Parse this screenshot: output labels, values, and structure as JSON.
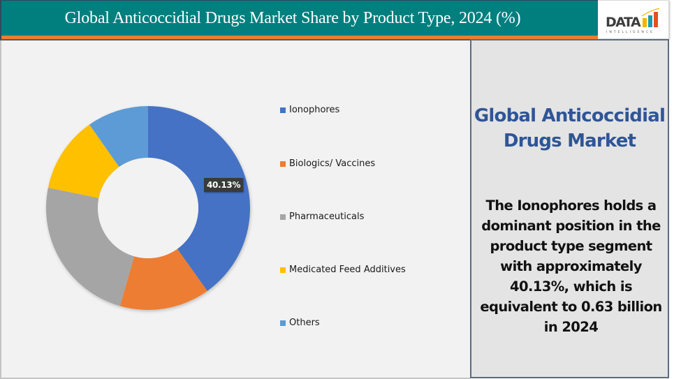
{
  "header": {
    "title": "Global Anticoccidial Drugs Market Share by Product Type, 2024 (%)",
    "logo": {
      "word": "DATA",
      "subword": "INTELLIGENCE",
      "bar_colors": [
        "#f5b400",
        "#1a9bb0",
        "#e8501e"
      ]
    },
    "colors": {
      "bar": "#007f7f",
      "accent": "#ed7d31"
    }
  },
  "chart_data": {
    "type": "pie",
    "variant": "donut",
    "title": "Global Anticoccidial Drugs Market Share by Product Type, 2024 (%)",
    "categories": [
      "Ionophores",
      "Biologics/ Vaccines",
      "Pharmaceuticals",
      "Medicated Feed Additives",
      "Others"
    ],
    "values": [
      40.13,
      14.3,
      23.75,
      12.07,
      9.75
    ],
    "colors": [
      "#4472c4",
      "#ed7d31",
      "#a5a5a5",
      "#ffc000",
      "#5b9bd5"
    ],
    "data_labels": [
      {
        "category": "Ionophores",
        "text": "40.13%"
      }
    ],
    "legend_position": "right",
    "start_angle_deg": 0,
    "direction": "clockwise"
  },
  "legend": {
    "items": [
      {
        "label": "Ionophores",
        "color": "#4472c4"
      },
      {
        "label": "Biologics/ Vaccines",
        "color": "#ed7d31"
      },
      {
        "label": "Pharmaceuticals",
        "color": "#a5a5a5"
      },
      {
        "label": "Medicated Feed Additives",
        "color": "#ffc000"
      },
      {
        "label": "Others",
        "color": "#5b9bd5"
      }
    ]
  },
  "data_label": {
    "text": "40.13%"
  },
  "side_panel": {
    "title": "Global Anticoccidial Drugs Market",
    "body": "The Ionophores holds a dominant position in the product type segment with approximately 40.13%, which is equivalent to 0.63 billion in 2024"
  }
}
